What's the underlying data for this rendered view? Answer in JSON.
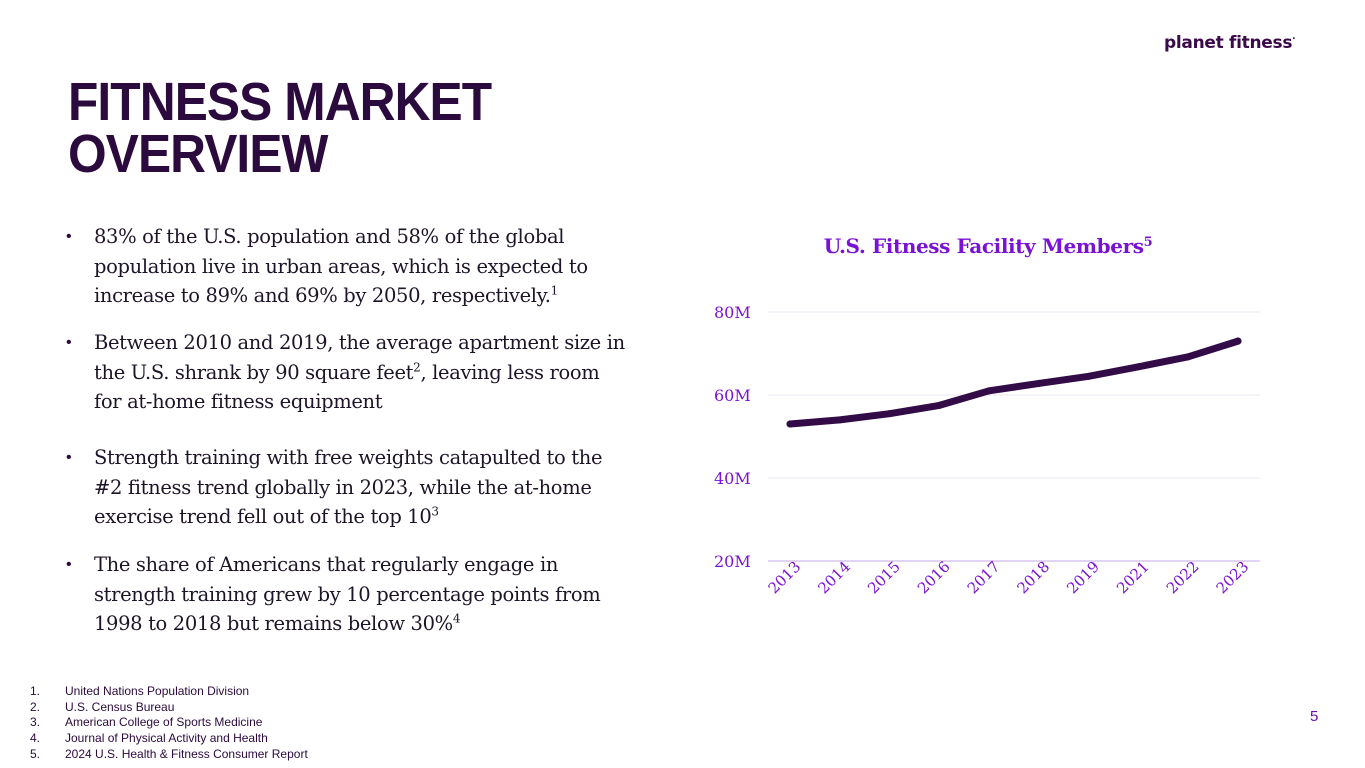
{
  "brand": {
    "logo_text": "planet fitness",
    "logo_mark": "·"
  },
  "slide": {
    "title_line1": "FITNESS MARKET",
    "title_line2": "OVERVIEW",
    "page_number": "5"
  },
  "bullets": [
    {
      "marker": "•",
      "text": "83% of the U.S. population and 58% of the global population live in urban areas, which is expected to increase to 89% and 69% by 2050, respectively.",
      "footnote": "1"
    },
    {
      "marker": "•",
      "text_before": "Between 2010 and 2019, the average apartment size in the U.S. shrank by 90 square feet",
      "footnote": "2",
      "text_after": ", leaving less room for at-home fitness equipment"
    },
    {
      "marker": "•",
      "text": "Strength training with free weights catapulted to the #2 fitness trend globally in 2023, while the at-home exercise trend fell out of the top 10",
      "footnote": "3"
    },
    {
      "marker": "•",
      "text": "The share of Americans that regularly engage in strength training grew by 10 percentage points from 1998 to 2018 but remains below 30%",
      "footnote": "4"
    }
  ],
  "footnotes": [
    {
      "num": "1.",
      "text": "United Nations Population Division"
    },
    {
      "num": "2.",
      "text": "U.S. Census Bureau"
    },
    {
      "num": "3.",
      "text": "American College of Sports Medicine"
    },
    {
      "num": "4.",
      "text": "Journal of Physical Activity and Health"
    },
    {
      "num": "5.",
      "text": "2024 U.S. Health & Fitness Consumer Report"
    }
  ],
  "colors": {
    "title": "#2b0a3d",
    "accent": "#7a11d6",
    "line": "#320b47",
    "gridline": "#ece6f5",
    "axis": "#d7c6f0"
  },
  "chart_data": {
    "type": "line",
    "title": "U.S. Fitness Facility Members",
    "title_footnote": "5",
    "categories": [
      "2013",
      "2014",
      "2015",
      "2016",
      "2017",
      "2018",
      "2019",
      "2021",
      "2022",
      "2023"
    ],
    "series": [
      {
        "name": "U.S. Fitness Facility Members",
        "values": [
          53,
          54,
          55.5,
          57.5,
          61,
          62.8,
          64.5,
          66.8,
          69.2,
          73
        ]
      }
    ],
    "y_ticks": [
      20,
      40,
      60,
      80
    ],
    "y_tick_labels": [
      "20M",
      "40M",
      "60M",
      "80M"
    ],
    "ylim": [
      20,
      80
    ],
    "xlabel": "",
    "ylabel": "",
    "grid": true,
    "legend": "none"
  }
}
